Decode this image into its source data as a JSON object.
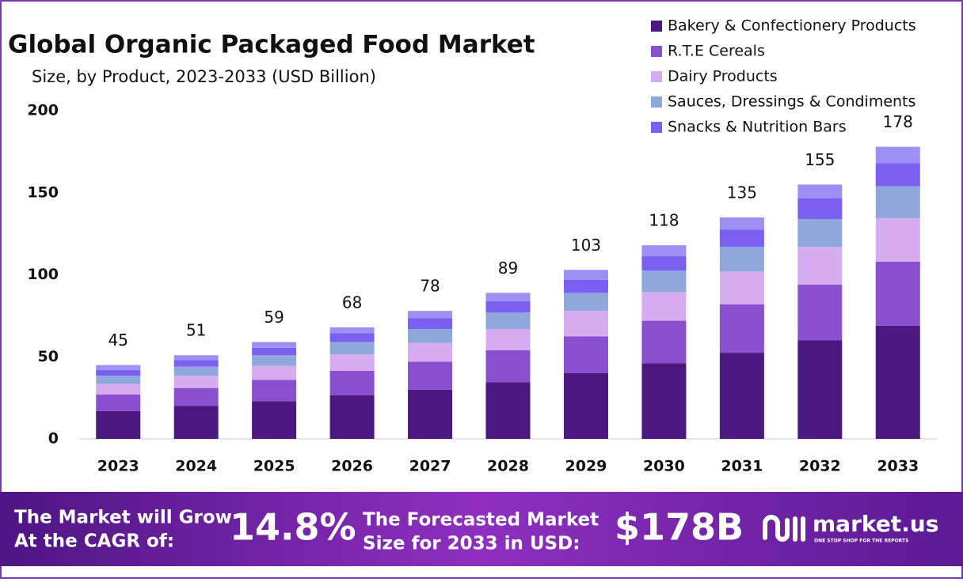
{
  "chart_data": {
    "type": "stacked-bar",
    "title": "Global Organic Packaged Food Market",
    "subtitle": "Size, by Product, 2023-2033 (USD Billion)",
    "categories": [
      "2023",
      "2024",
      "2025",
      "2026",
      "2027",
      "2028",
      "2029",
      "2030",
      "2031",
      "2032",
      "2033"
    ],
    "series": [
      {
        "name": "Bakery & Confectionery Products",
        "color": "#4b1880",
        "values": [
          17,
          20,
          23,
          26.5,
          30,
          34.5,
          40,
          46,
          52.5,
          60,
          69
        ]
      },
      {
        "name": "R.T.E Cereals",
        "color": "#8a4fcf",
        "values": [
          10,
          11,
          13,
          15,
          17,
          19.5,
          22.5,
          26,
          29.5,
          34,
          39
        ]
      },
      {
        "name": "Dairy Products",
        "color": "#d6acf0",
        "values": [
          6.5,
          7.5,
          8.5,
          10,
          11.5,
          13,
          15.5,
          17.5,
          20,
          23,
          26.5
        ]
      },
      {
        "name": "Sauces, Dressings & Condiments",
        "color": "#8fa8dc",
        "values": [
          5,
          5.5,
          6.5,
          7.5,
          8.5,
          10,
          11,
          13,
          15,
          17,
          19.5
        ]
      },
      {
        "name": "Snacks & Nutrition Bars",
        "color": "#7a5ff0",
        "values": [
          3.5,
          4,
          4.5,
          5.5,
          6.5,
          7,
          8,
          9,
          10.5,
          12.5,
          14
        ]
      },
      {
        "color": "#9d90f5",
        "values": [
          3,
          3,
          3.5,
          3.5,
          4.5,
          5,
          6,
          6.5,
          7.5,
          8.5,
          10
        ]
      }
    ],
    "totals": [
      45,
      51,
      59,
      68,
      78,
      89,
      103,
      118,
      135,
      155,
      178
    ],
    "ylim": [
      0,
      200
    ],
    "yticks": [
      0,
      50,
      100,
      150,
      200
    ],
    "grid": false
  },
  "footer": {
    "cagr_label": [
      "The Market will Grow",
      "At the CAGR of:"
    ],
    "cagr_value": "14.8%",
    "forecast_label": [
      "The Forecasted Market",
      "Size for 2033 in USD:"
    ],
    "forecast_value": "$178B",
    "brand": "market.us",
    "tagline": "ONE STOP SHOP FOR THE REPORTS"
  }
}
